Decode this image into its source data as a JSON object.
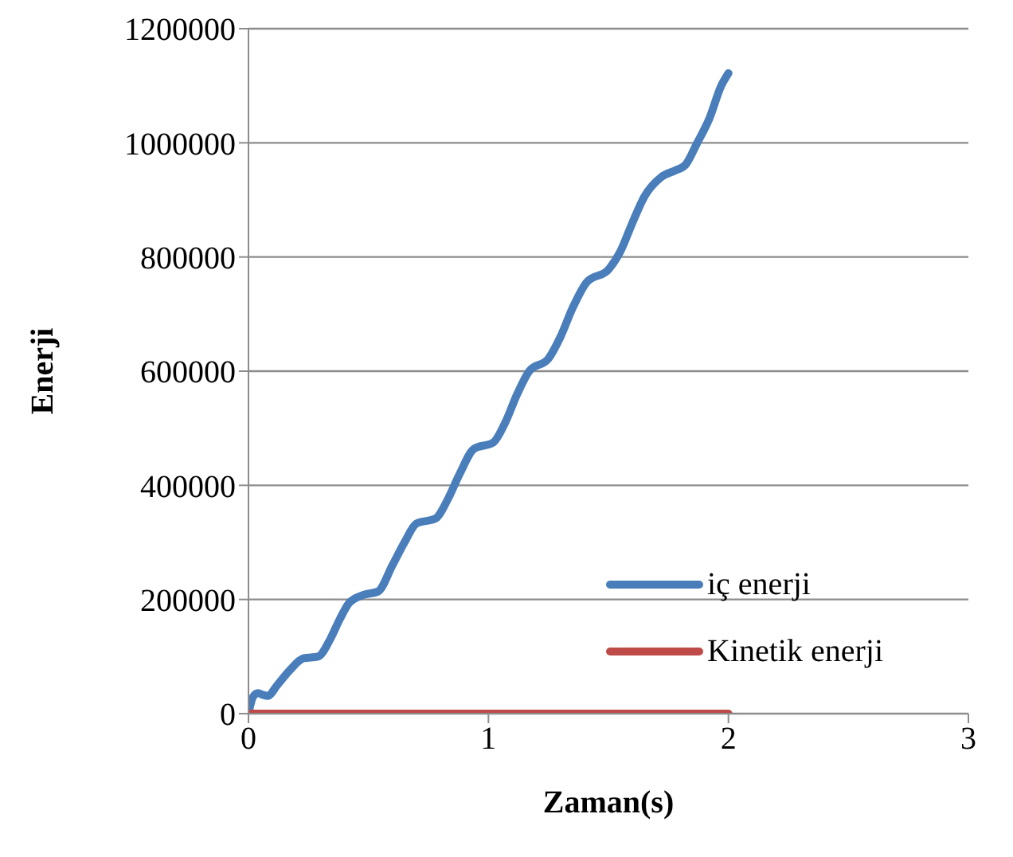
{
  "chart_data": {
    "type": "line",
    "xlabel": "Zaman(s)",
    "ylabel": "Enerji",
    "xlim": [
      0,
      3
    ],
    "xticks": [
      0,
      1,
      2,
      3
    ],
    "ylim": [
      0,
      1200000
    ],
    "yticks": [
      0,
      200000,
      400000,
      600000,
      800000,
      1000000,
      1200000
    ],
    "grid": "y",
    "legend": "bottom right",
    "marker": "none",
    "line_style": "solid",
    "series": [
      {
        "name": "iç enerji",
        "color": "#4a7ebb",
        "x": [
          0,
          0.02,
          0.04,
          0.06,
          0.08,
          0.12,
          0.17,
          0.23,
          0.29,
          0.34,
          0.38,
          0.42,
          0.48,
          0.54,
          0.6,
          0.65,
          0.7,
          0.78,
          0.83,
          0.88,
          0.94,
          1.02,
          1.07,
          1.12,
          1.17,
          1.25,
          1.3,
          1.35,
          1.41,
          1.5,
          1.55,
          1.6,
          1.65,
          1.72,
          1.78,
          1.82,
          1.87,
          1.92,
          1.97,
          2.0
        ],
        "values": [
          0,
          30000,
          36000,
          33000,
          31000,
          50000,
          75000,
          97000,
          100000,
          130000,
          165000,
          194000,
          208000,
          214000,
          260000,
          300000,
          333000,
          342000,
          375000,
          420000,
          464000,
          475000,
          510000,
          560000,
          600000,
          622000,
          660000,
          710000,
          756000,
          778000,
          810000,
          860000,
          906000,
          940000,
          952000,
          961000,
          1000000,
          1042000,
          1100000,
          1122000
        ]
      },
      {
        "name": "Kinetik enerji",
        "color": "#be4b48",
        "x": [
          0,
          2
        ],
        "values": [
          0,
          0
        ]
      }
    ]
  }
}
